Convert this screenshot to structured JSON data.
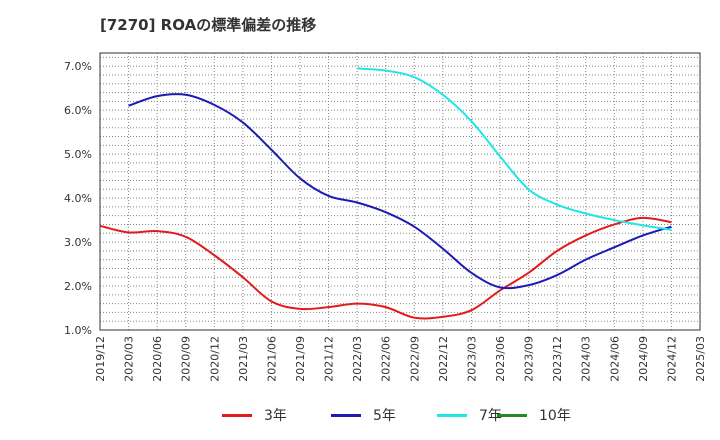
{
  "chart_data": {
    "type": "line",
    "title": "[7270]  ROAの標準偏差の推移",
    "xlabel": "",
    "ylabel": "",
    "ylim": [
      1.0,
      7.3
    ],
    "y_ticks": [
      "1.0%",
      "2.0%",
      "3.0%",
      "4.0%",
      "5.0%",
      "6.0%",
      "7.0%"
    ],
    "x_ticks": [
      "2019/12",
      "2020/03",
      "2020/06",
      "2020/09",
      "2020/12",
      "2021/03",
      "2021/06",
      "2021/09",
      "2021/12",
      "2022/03",
      "2022/06",
      "2022/09",
      "2022/12",
      "2023/03",
      "2023/06",
      "2023/09",
      "2023/12",
      "2024/03",
      "2024/06",
      "2024/09",
      "2024/12",
      "2025/03"
    ],
    "grid": true,
    "legend_position": "bottom",
    "series": [
      {
        "name": "3年",
        "color": "#e31a1c",
        "x": [
          "2019/12",
          "2020/03",
          "2020/06",
          "2020/09",
          "2020/12",
          "2021/03",
          "2021/06",
          "2021/09",
          "2021/12",
          "2022/03",
          "2022/06",
          "2022/09",
          "2022/12",
          "2023/03",
          "2023/06",
          "2023/09",
          "2023/12",
          "2024/03",
          "2024/06",
          "2024/09",
          "2024/12"
        ],
        "values": [
          3.37,
          3.22,
          3.25,
          3.12,
          2.7,
          2.2,
          1.65,
          1.48,
          1.52,
          1.6,
          1.52,
          1.28,
          1.3,
          1.45,
          1.9,
          2.3,
          2.8,
          3.15,
          3.4,
          3.55,
          3.45
        ]
      },
      {
        "name": "5年",
        "color": "#1c1cb4",
        "x": [
          "2020/03",
          "2020/06",
          "2020/09",
          "2020/12",
          "2021/03",
          "2021/06",
          "2021/09",
          "2021/12",
          "2022/03",
          "2022/06",
          "2022/09",
          "2022/12",
          "2023/03",
          "2023/06",
          "2023/09",
          "2023/12",
          "2024/03",
          "2024/06",
          "2024/09",
          "2024/12"
        ],
        "values": [
          6.1,
          6.32,
          6.35,
          6.12,
          5.72,
          5.1,
          4.45,
          4.05,
          3.9,
          3.68,
          3.35,
          2.85,
          2.3,
          1.97,
          2.02,
          2.25,
          2.6,
          2.88,
          3.15,
          3.35
        ]
      },
      {
        "name": "7年",
        "color": "#22e5e5",
        "x": [
          "2022/03",
          "2022/06",
          "2022/09",
          "2022/12",
          "2023/03",
          "2023/06",
          "2023/09",
          "2023/12",
          "2024/03",
          "2024/06",
          "2024/09",
          "2024/12"
        ],
        "values": [
          6.95,
          6.9,
          6.75,
          6.35,
          5.75,
          4.95,
          4.2,
          3.85,
          3.65,
          3.5,
          3.38,
          3.28
        ]
      },
      {
        "name": "10年",
        "color": "#228b22",
        "x": [],
        "values": []
      }
    ]
  }
}
